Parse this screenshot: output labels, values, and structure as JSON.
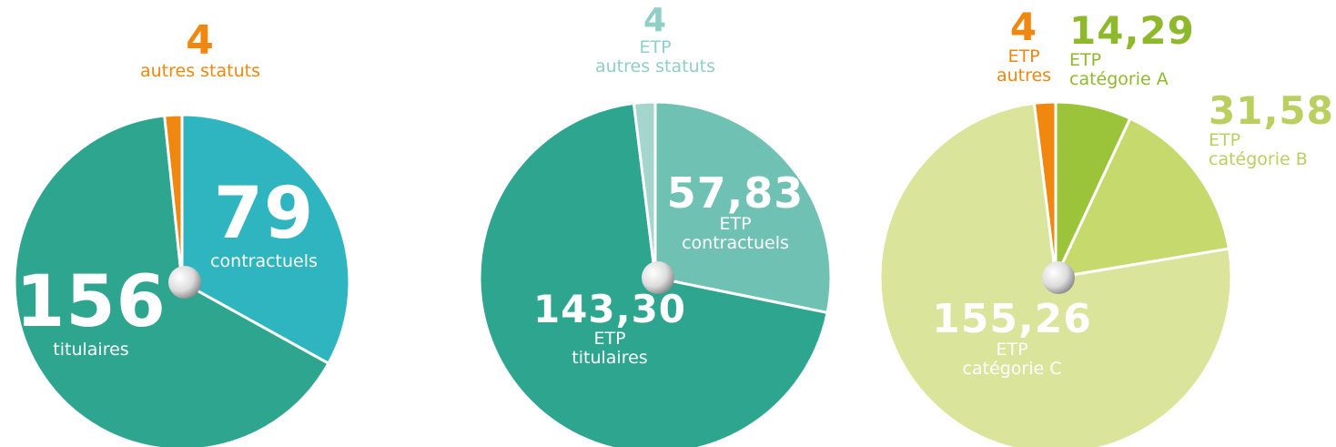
{
  "chart_data": [
    {
      "type": "pie",
      "categories": [
        "contractuels",
        "titulaires",
        "autres statuts"
      ],
      "values": [
        79,
        156,
        4
      ],
      "colors": [
        "#2fb5c0",
        "#2ea58f",
        "#f0870f"
      ]
    },
    {
      "type": "pie",
      "categories": [
        "ETP\ncontractuels",
        "ETP\ntitulaires",
        "ETP\nautres statuts"
      ],
      "values": [
        57.83,
        143.3,
        4
      ],
      "value_labels": [
        "57,83",
        "143,30",
        "4"
      ],
      "colors": [
        "#6fc1b3",
        "#2ea58f",
        "#a4d6ce"
      ]
    },
    {
      "type": "pie",
      "categories": [
        "ETP\ncatégorie A",
        "ETP\ncatégorie B",
        "ETP\ncatégorie C",
        "ETP\nautres"
      ],
      "values": [
        14.29,
        31.58,
        155.26,
        4
      ],
      "value_labels": [
        "14,29",
        "31,58",
        "155,26",
        "4"
      ],
      "colors": [
        "#9bc43a",
        "#c5d96c",
        "#dae59b",
        "#f0870f"
      ]
    }
  ]
}
